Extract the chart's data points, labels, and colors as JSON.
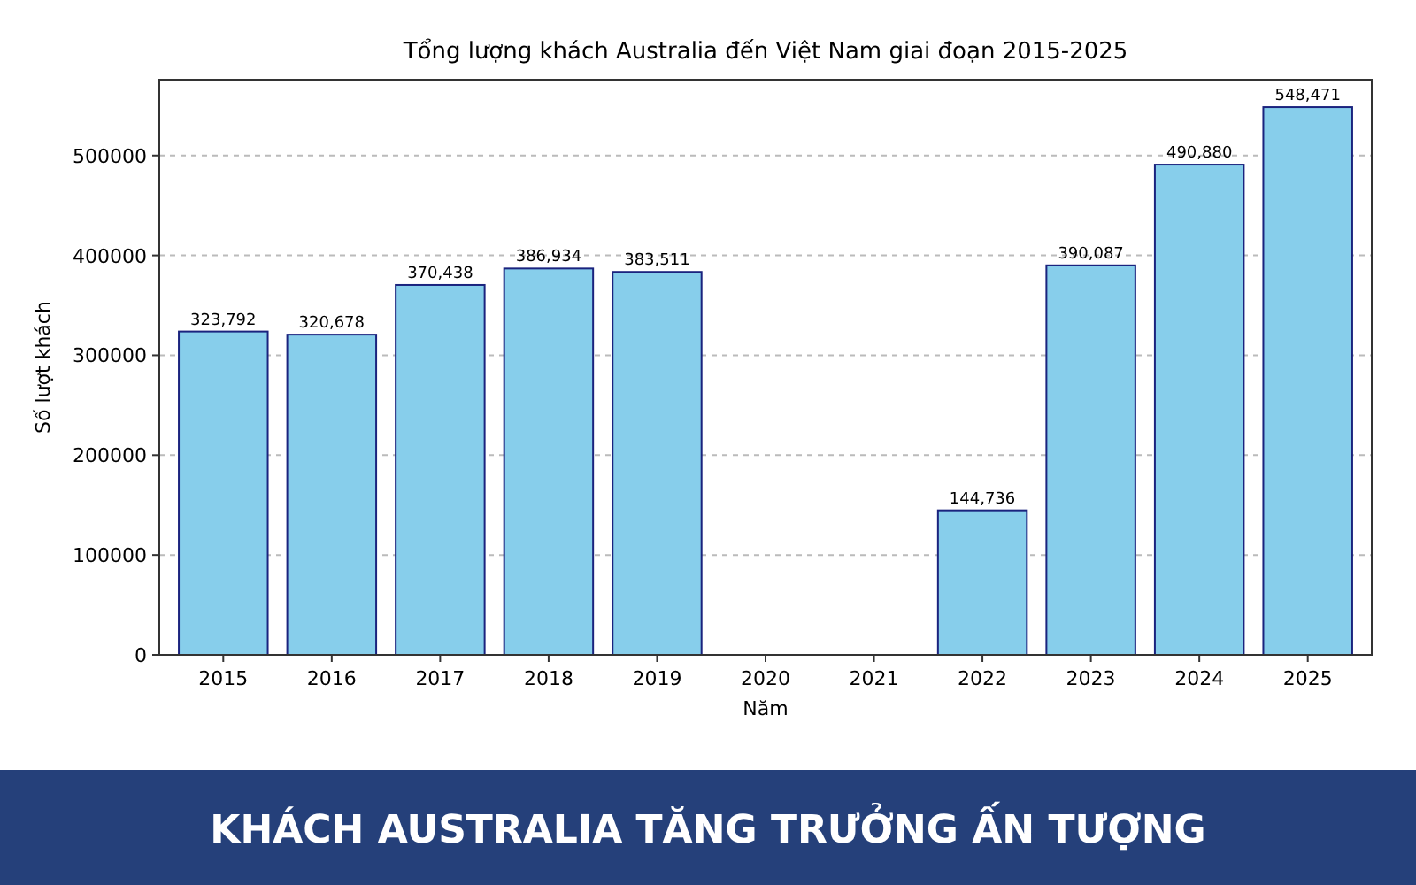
{
  "chart_data": {
    "type": "bar",
    "title": "Tổng lượng khách Australia đến Việt Nam giai đoạn 2015-2025",
    "xlabel": "Năm",
    "ylabel": "Số lượt khách",
    "categories": [
      "2015",
      "2016",
      "2017",
      "2018",
      "2019",
      "2020",
      "2021",
      "2022",
      "2023",
      "2024",
      "2025"
    ],
    "values": [
      323792,
      320678,
      370438,
      386934,
      383511,
      null,
      null,
      144736,
      390087,
      490880,
      548471
    ],
    "value_labels": [
      "323,792",
      "320,678",
      "370,438",
      "386,934",
      "383,511",
      null,
      null,
      "144,736",
      "390,087",
      "490,880",
      "548,471"
    ],
    "color": "#87ceeb",
    "ylim": [
      0,
      576000
    ],
    "yticks": [
      0,
      100000,
      200000,
      300000,
      400000,
      500000
    ],
    "grid": "y",
    "annotations": [
      "KHÁCH AUSTRALIA TĂNG TRƯỞNG ẤN TƯỢNG"
    ]
  }
}
